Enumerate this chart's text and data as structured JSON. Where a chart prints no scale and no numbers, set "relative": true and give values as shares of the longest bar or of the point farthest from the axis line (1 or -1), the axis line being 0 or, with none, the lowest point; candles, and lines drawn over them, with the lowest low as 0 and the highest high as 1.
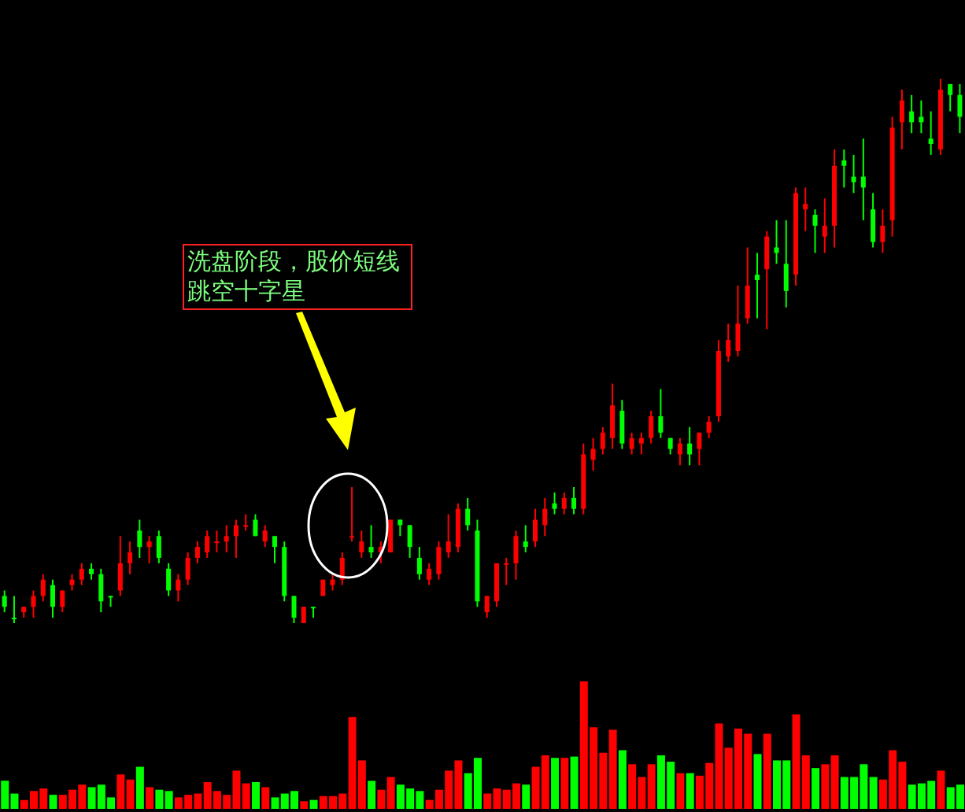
{
  "chart_data": [
    {
      "type": "candlestick",
      "relative": true,
      "categories": [
        null,
        null,
        null,
        null,
        null,
        null,
        null,
        null,
        null,
        null,
        null,
        null,
        null,
        null,
        null,
        null,
        null,
        null,
        null,
        null,
        null,
        null,
        null,
        null,
        null,
        null,
        null,
        null,
        null,
        null,
        null,
        null,
        null,
        null,
        null,
        null,
        null,
        null,
        null,
        null,
        null,
        null,
        null,
        null,
        null,
        null,
        null,
        null,
        null,
        null,
        null,
        null,
        null,
        null,
        null,
        null,
        null,
        null,
        null,
        null,
        null,
        null,
        null,
        null,
        null,
        null,
        null,
        null,
        null,
        null,
        null,
        null,
        null,
        null,
        null,
        null,
        null,
        null,
        null,
        null,
        null,
        null,
        null,
        null,
        null,
        null,
        null,
        null,
        null,
        null,
        null,
        null,
        null,
        null,
        null,
        null,
        null,
        null,
        null,
        null
      ],
      "ohlc": [
        [
          0.05,
          0.06,
          0.02,
          0.03
        ],
        [
          0.01,
          0.05,
          0,
          0.01
        ],
        [
          0.02,
          0.03,
          0.01,
          0.03
        ],
        [
          0.03,
          0.06,
          0.01,
          0.05
        ],
        [
          0.05,
          0.09,
          0.04,
          0.08
        ],
        [
          0.07,
          0.08,
          0.01,
          0.03
        ],
        [
          0.03,
          0.06,
          0.02,
          0.06
        ],
        [
          0.07,
          0.09,
          0.06,
          0.08
        ],
        [
          0.08,
          0.11,
          0.07,
          0.1
        ],
        [
          0.1,
          0.11,
          0.08,
          0.09
        ],
        [
          0.09,
          0.1,
          0.02,
          0.04
        ],
        [
          0.05,
          0.05,
          0.03,
          0.05
        ],
        [
          0.06,
          0.16,
          0.05,
          0.11
        ],
        [
          0.11,
          0.15,
          0.09,
          0.13
        ],
        [
          0.17,
          0.19,
          0.12,
          0.14
        ],
        [
          0.14,
          0.16,
          0.11,
          0.15
        ],
        [
          0.16,
          0.17,
          0.11,
          0.12
        ],
        [
          0.1,
          0.11,
          0.05,
          0.06
        ],
        [
          0.06,
          0.09,
          0.04,
          0.08
        ],
        [
          0.08,
          0.13,
          0.07,
          0.12
        ],
        [
          0.12,
          0.15,
          0.11,
          0.14
        ],
        [
          0.13,
          0.17,
          0.12,
          0.16
        ],
        [
          0.15,
          0.17,
          0.13,
          0.15
        ],
        [
          0.15,
          0.18,
          0.13,
          0.16
        ],
        [
          0.16,
          0.19,
          0.12,
          0.18
        ],
        [
          0.18,
          0.2,
          0.17,
          0.18
        ],
        [
          0.19,
          0.2,
          0.16,
          0.16
        ],
        [
          0.15,
          0.18,
          0.14,
          0.17
        ],
        [
          0.16,
          0.16,
          0.11,
          0.14
        ],
        [
          0.14,
          0.15,
          0.04,
          0.05
        ],
        [
          0.05,
          0.05,
          0,
          0.01
        ],
        [
          0,
          0.03,
          0,
          0.03
        ],
        [
          0.03,
          0.03,
          0.01,
          0.03
        ],
        [
          0.05,
          0.08,
          0.05,
          0.08
        ],
        [
          0.07,
          0.09,
          0.06,
          0.08
        ],
        [
          0.08,
          0.13,
          0.07,
          0.12
        ],
        [
          0.16,
          0.25,
          0.15,
          0.16
        ],
        [
          0.13,
          0.17,
          0.12,
          0.15
        ],
        [
          0.14,
          0.18,
          0.12,
          0.13
        ],
        [
          0.13,
          0.15,
          0.11,
          0.14
        ],
        [
          0.13,
          0.19,
          0.13,
          0.19
        ],
        [
          0.19,
          0.19,
          0.16,
          0.18
        ],
        [
          0.18,
          0.18,
          0.12,
          0.14
        ],
        [
          0.12,
          0.14,
          0.08,
          0.09
        ],
        [
          0.08,
          0.11,
          0.07,
          0.1
        ],
        [
          0.09,
          0.15,
          0.08,
          0.14
        ],
        [
          0.13,
          0.2,
          0.12,
          0.15
        ],
        [
          0.14,
          0.22,
          0.13,
          0.21
        ],
        [
          0.21,
          0.23,
          0.17,
          0.18
        ],
        [
          0.17,
          0.19,
          0.03,
          0.04
        ],
        [
          0.02,
          0.05,
          0.01,
          0.05
        ],
        [
          0.04,
          0.11,
          0.03,
          0.11
        ],
        [
          0.11,
          0.12,
          0.07,
          0.11
        ],
        [
          0.11,
          0.17,
          0.08,
          0.16
        ],
        [
          0.15,
          0.18,
          0.13,
          0.14
        ],
        [
          0.15,
          0.21,
          0.14,
          0.19
        ],
        [
          0.18,
          0.23,
          0.16,
          0.21
        ],
        [
          0.22,
          0.24,
          0.2,
          0.21
        ],
        [
          0.21,
          0.24,
          0.2,
          0.23
        ],
        [
          0.23,
          0.25,
          0.2,
          0.21
        ],
        [
          0.21,
          0.33,
          0.2,
          0.31
        ],
        [
          0.3,
          0.34,
          0.28,
          0.32
        ],
        [
          0.32,
          0.36,
          0.31,
          0.35
        ],
        [
          0.34,
          0.44,
          0.32,
          0.4
        ],
        [
          0.39,
          0.41,
          0.32,
          0.33
        ],
        [
          0.32,
          0.35,
          0.31,
          0.34
        ],
        [
          0.33,
          0.35,
          0.31,
          0.34
        ],
        [
          0.34,
          0.39,
          0.33,
          0.38
        ],
        [
          0.38,
          0.43,
          0.34,
          0.35
        ],
        [
          0.34,
          0.34,
          0.31,
          0.32
        ],
        [
          0.31,
          0.34,
          0.29,
          0.33
        ],
        [
          0.33,
          0.36,
          0.29,
          0.31
        ],
        [
          0.32,
          0.35,
          0.29,
          0.35
        ],
        [
          0.35,
          0.38,
          0.34,
          0.37
        ],
        [
          0.38,
          0.52,
          0.37,
          0.5
        ],
        [
          0.49,
          0.55,
          0.48,
          0.52
        ],
        [
          0.5,
          0.62,
          0.49,
          0.55
        ],
        [
          0.56,
          0.69,
          0.55,
          0.62
        ],
        [
          0.64,
          0.68,
          0.56,
          0.63
        ],
        [
          0.65,
          0.72,
          0.54,
          0.71
        ],
        [
          0.69,
          0.74,
          0.66,
          0.68
        ],
        [
          0.66,
          0.74,
          0.58,
          0.61
        ],
        [
          0.64,
          0.8,
          0.62,
          0.79
        ],
        [
          0.76,
          0.8,
          0.72,
          0.77
        ],
        [
          0.75,
          0.76,
          0.68,
          0.73
        ],
        [
          0.71,
          0.78,
          0.68,
          0.73
        ],
        [
          0.73,
          0.87,
          0.69,
          0.84
        ],
        [
          0.85,
          0.87,
          0.8,
          0.84
        ],
        [
          0.82,
          0.86,
          0.79,
          0.81
        ],
        [
          0.82,
          0.89,
          0.74,
          0.8
        ],
        [
          0.76,
          0.79,
          0.69,
          0.7
        ],
        [
          0.7,
          0.76,
          0.68,
          0.73
        ],
        [
          0.74,
          0.93,
          0.71,
          0.91
        ],
        [
          0.92,
          0.98,
          0.87,
          0.96
        ],
        [
          0.94,
          0.97,
          0.9,
          0.92
        ],
        [
          0.93,
          0.96,
          0.9,
          0.92
        ],
        [
          0.89,
          0.94,
          0.86,
          0.88
        ],
        [
          0.87,
          1,
          0.86,
          0.98
        ],
        [
          0.99,
          0.99,
          0.94,
          0.97
        ],
        [
          0.97,
          0.99,
          0.9,
          0.93
        ]
      ],
      "colors": [
        "#00ff00",
        "#00ff00",
        "#ff0000",
        "#ff0000",
        "#ff0000",
        "#00ff00",
        "#ff0000",
        "#ff0000",
        "#ff0000",
        "#00ff00",
        "#00ff00",
        "#00ff00",
        "#ff0000",
        "#ff0000",
        "#00ff00",
        "#ff0000",
        "#00ff00",
        "#00ff00",
        "#ff0000",
        "#ff0000",
        "#ff0000",
        "#ff0000",
        "#ff0000",
        "#ff0000",
        "#ff0000",
        "#ff0000",
        "#00ff00",
        "#ff0000",
        "#00ff00",
        "#00ff00",
        "#00ff00",
        "#ff0000",
        "#00ff00",
        "#ff0000",
        "#ff0000",
        "#ff0000",
        "#ff0000",
        "#ff0000",
        "#00ff00",
        "#ff0000",
        "#ff0000",
        "#00ff00",
        "#00ff00",
        "#00ff00",
        "#ff0000",
        "#ff0000",
        "#ff0000",
        "#ff0000",
        "#00ff00",
        "#00ff00",
        "#ff0000",
        "#ff0000",
        "#ff0000",
        "#ff0000",
        "#00ff00",
        "#ff0000",
        "#ff0000",
        "#00ff00",
        "#ff0000",
        "#00ff00",
        "#ff0000",
        "#ff0000",
        "#ff0000",
        "#ff0000",
        "#00ff00",
        "#ff0000",
        "#ff0000",
        "#ff0000",
        "#00ff00",
        "#00ff00",
        "#ff0000",
        "#00ff00",
        "#ff0000",
        "#ff0000",
        "#ff0000",
        "#ff0000",
        "#ff0000",
        "#ff0000",
        "#00ff00",
        "#ff0000",
        "#00ff00",
        "#00ff00",
        "#ff0000",
        "#ff0000",
        "#00ff00",
        "#ff0000",
        "#ff0000",
        "#00ff00",
        "#00ff00",
        "#00ff00",
        "#00ff00",
        "#ff0000",
        "#ff0000",
        "#ff0000",
        "#00ff00",
        "#00ff00",
        "#00ff00",
        "#ff0000",
        "#00ff00",
        "#00ff00"
      ],
      "annotations": [
        "洗盘阶段，股价短线跳空十字星"
      ]
    },
    {
      "type": "bar",
      "relative": true,
      "categories": [
        null,
        null,
        null,
        null,
        null,
        null,
        null,
        null,
        null,
        null,
        null,
        null,
        null,
        null,
        null,
        null,
        null,
        null,
        null,
        null,
        null,
        null,
        null,
        null,
        null,
        null,
        null,
        null,
        null,
        null,
        null,
        null,
        null,
        null,
        null,
        null,
        null,
        null,
        null,
        null,
        null,
        null,
        null,
        null,
        null,
        null,
        null,
        null,
        null,
        null,
        null,
        null,
        null,
        null,
        null,
        null,
        null,
        null,
        null,
        null,
        null,
        null,
        null,
        null,
        null,
        null,
        null,
        null,
        null,
        null,
        null,
        null,
        null,
        null,
        null,
        null,
        null,
        null,
        null,
        null,
        null,
        null,
        null,
        null,
        null,
        null,
        null,
        null,
        null,
        null,
        null,
        null,
        null,
        null,
        null,
        null,
        null,
        null,
        null,
        null
      ],
      "values": [
        0.22,
        0.12,
        0.07,
        0.14,
        0.16,
        0.11,
        0.11,
        0.15,
        0.19,
        0.17,
        0.19,
        0.09,
        0.27,
        0.23,
        0.33,
        0.17,
        0.15,
        0.14,
        0.09,
        0.11,
        0.12,
        0.21,
        0.14,
        0.11,
        0.3,
        0.2,
        0.21,
        0.17,
        0.09,
        0.12,
        0.14,
        0.06,
        0.07,
        0.1,
        0.1,
        0.12,
        0.72,
        0.38,
        0.22,
        0.15,
        0.25,
        0.19,
        0.16,
        0.14,
        0.07,
        0.15,
        0.3,
        0.38,
        0.28,
        0.4,
        0.12,
        0.16,
        0.15,
        0.2,
        0.19,
        0.33,
        0.42,
        0.4,
        0.4,
        0.41,
        1,
        0.64,
        0.44,
        0.62,
        0.46,
        0.35,
        0.25,
        0.35,
        0.42,
        0.37,
        0.28,
        0.28,
        0.26,
        0.36,
        0.67,
        0.48,
        0.63,
        0.59,
        0.43,
        0.59,
        0.38,
        0.38,
        0.74,
        0.42,
        0.32,
        0.35,
        0.42,
        0.25,
        0.25,
        0.35,
        0.25,
        0.23,
        0.46,
        0.37,
        0.19,
        0.2,
        0.22,
        0.3,
        0.17,
        0.19
      ],
      "colors": [
        "#00ff00",
        "#00ff00",
        "#ff0000",
        "#ff0000",
        "#ff0000",
        "#00ff00",
        "#ff0000",
        "#ff0000",
        "#ff0000",
        "#00ff00",
        "#00ff00",
        "#00ff00",
        "#ff0000",
        "#ff0000",
        "#00ff00",
        "#ff0000",
        "#00ff00",
        "#00ff00",
        "#ff0000",
        "#ff0000",
        "#ff0000",
        "#ff0000",
        "#ff0000",
        "#ff0000",
        "#ff0000",
        "#ff0000",
        "#00ff00",
        "#ff0000",
        "#00ff00",
        "#00ff00",
        "#00ff00",
        "#ff0000",
        "#00ff00",
        "#ff0000",
        "#ff0000",
        "#ff0000",
        "#ff0000",
        "#ff0000",
        "#00ff00",
        "#ff0000",
        "#ff0000",
        "#00ff00",
        "#00ff00",
        "#00ff00",
        "#ff0000",
        "#ff0000",
        "#ff0000",
        "#ff0000",
        "#00ff00",
        "#00ff00",
        "#ff0000",
        "#ff0000",
        "#ff0000",
        "#ff0000",
        "#00ff00",
        "#ff0000",
        "#ff0000",
        "#00ff00",
        "#ff0000",
        "#00ff00",
        "#ff0000",
        "#ff0000",
        "#ff0000",
        "#ff0000",
        "#00ff00",
        "#ff0000",
        "#ff0000",
        "#ff0000",
        "#00ff00",
        "#00ff00",
        "#ff0000",
        "#00ff00",
        "#ff0000",
        "#ff0000",
        "#ff0000",
        "#ff0000",
        "#ff0000",
        "#ff0000",
        "#00ff00",
        "#ff0000",
        "#00ff00",
        "#00ff00",
        "#ff0000",
        "#ff0000",
        "#00ff00",
        "#ff0000",
        "#ff0000",
        "#00ff00",
        "#00ff00",
        "#00ff00",
        "#00ff00",
        "#ff0000",
        "#ff0000",
        "#ff0000",
        "#00ff00",
        "#00ff00",
        "#00ff00",
        "#ff0000",
        "#00ff00",
        "#00ff00"
      ]
    }
  ]
}
